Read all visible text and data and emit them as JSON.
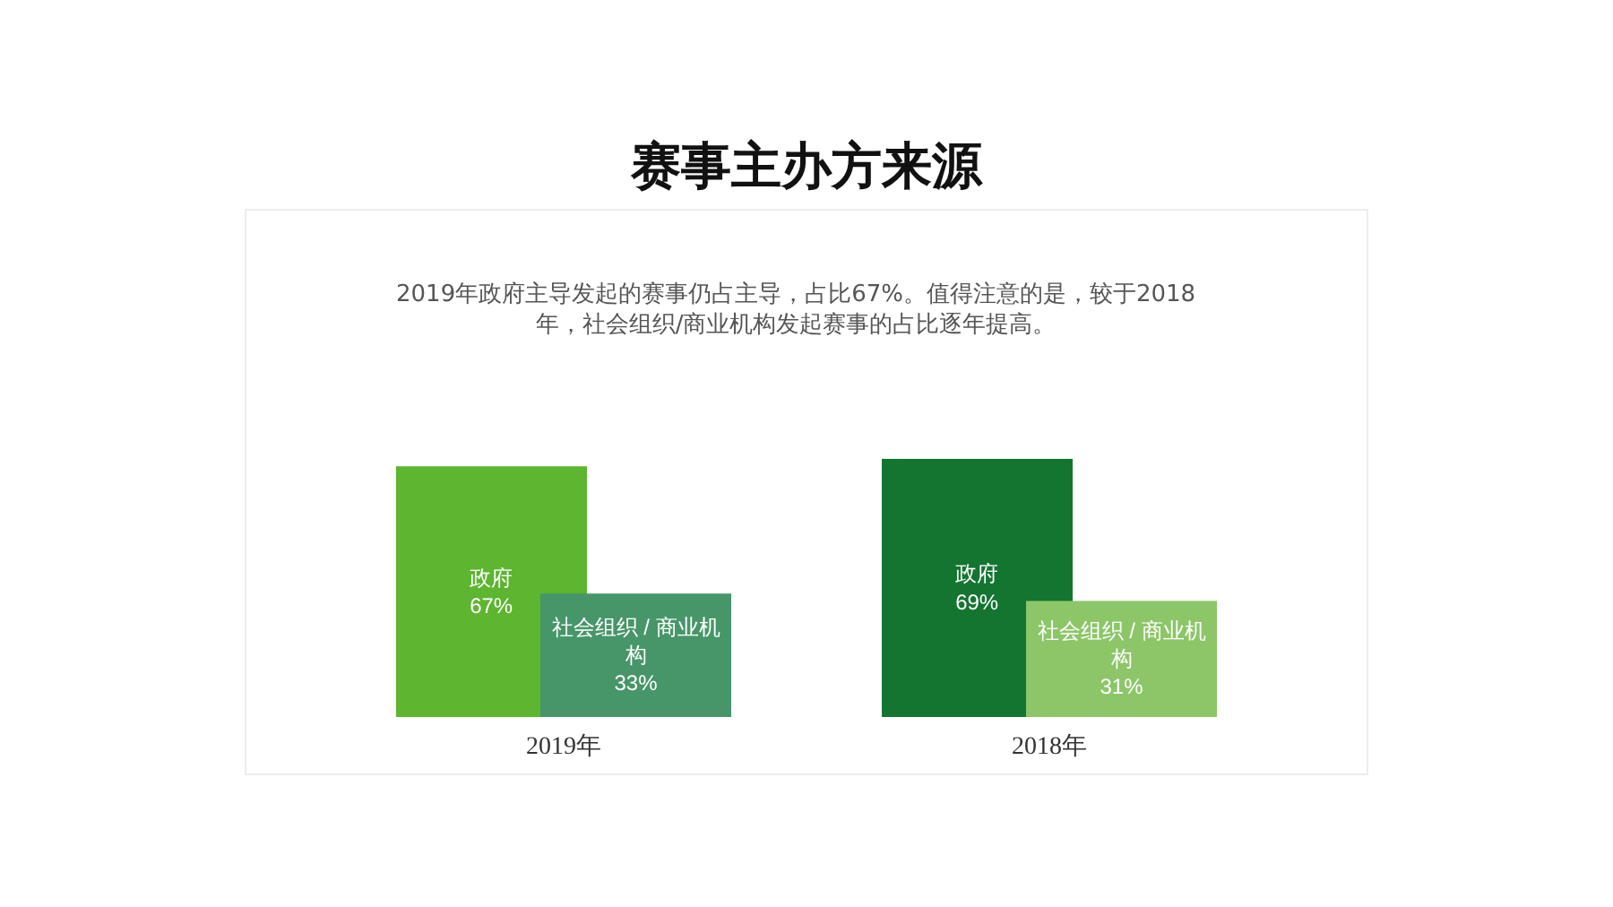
{
  "chart_data": [
    {
      "type": "bar",
      "title": "赛事主办方来源",
      "subtitle": "2019年政府主导发起的赛事仍占主导，占比67%。值得注意的是，较于2018年，社会组织/商业机构发起赛事的占比逐年提高。",
      "categories": [
        "政府",
        "社会组织 / 商业机构"
      ],
      "values": [
        67,
        33
      ],
      "value_labels": [
        "67%",
        "33%"
      ],
      "colors": [
        "#5db530",
        "#47966a"
      ],
      "xlabel": "2019年",
      "tick_labels": false
    },
    {
      "type": "bar",
      "categories": [
        "政府",
        "社会组织 / 商业机构"
      ],
      "values": [
        69,
        31
      ],
      "value_labels": [
        "69%",
        "31%"
      ],
      "colors": [
        "#137530",
        "#8cc668"
      ],
      "xlabel": "2018年",
      "tick_labels": false
    }
  ]
}
